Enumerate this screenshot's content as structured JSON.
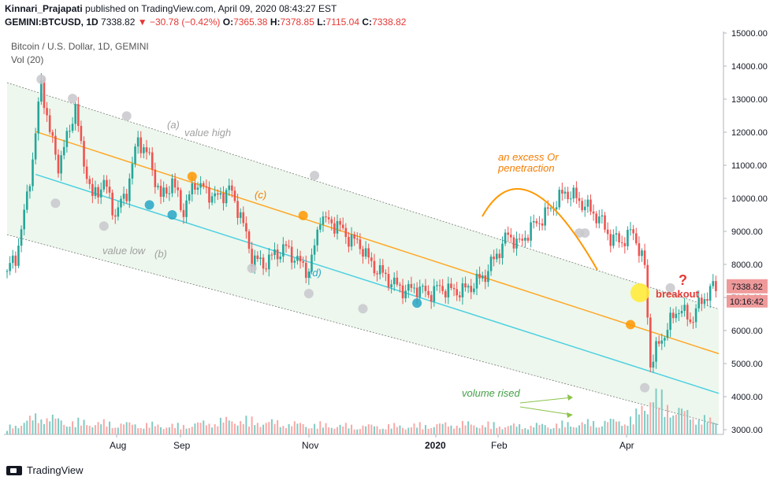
{
  "header": {
    "author": "Kinnari_Prajapati",
    "published": "published on TradingView.com, April 09, 2020 08:43:27 EST",
    "symbol": "GEMINI:BTCUSD, 1D",
    "last": "7338.82",
    "change_arrow": "▼",
    "change": "−30.78 (−0.42%)",
    "o_label": "O:",
    "o": "7365.38",
    "h_label": "H:",
    "h": "7378.85",
    "l_label": "L:",
    "l": "7115.04",
    "c_label": "C:",
    "c": "7338.82"
  },
  "legend": {
    "title": "Bitcoin / U.S. Dollar, 1D, GEMINI",
    "vol": "Vol (20)"
  },
  "footer": {
    "brand": "TradingView"
  },
  "colors": {
    "up": "#26a69a",
    "down": "#ef5350",
    "channel_fill": "#e8f5e9",
    "mid_line": "#ffa726",
    "lower_line": "#4dd0e1",
    "annotation_green": "#43a047"
  },
  "chart_data": {
    "type": "candlestick",
    "y_axis": {
      "min": 3000,
      "max": 15000,
      "ticks": [
        "15000.00",
        "14000.00",
        "13000.00",
        "12000.00",
        "11000.00",
        "10000.00",
        "9000.00",
        "8000.00",
        "7000.00",
        "6000.00",
        "5000.00",
        "4000.00",
        "3000.00"
      ]
    },
    "x_axis": {
      "ticks": [
        "Aug",
        "Sep",
        "Nov",
        "2020",
        "Feb",
        "Apr"
      ],
      "bold_ticks": [
        "2020"
      ]
    },
    "price_label": "7338.82",
    "countdown_label": "10:16:42",
    "price_path": [
      [
        0,
        7800
      ],
      [
        3,
        8200
      ],
      [
        6,
        9500
      ],
      [
        9,
        11200
      ],
      [
        12,
        13500
      ],
      [
        15,
        12000
      ],
      [
        18,
        11000
      ],
      [
        21,
        11800
      ],
      [
        24,
        12800
      ],
      [
        26,
        11500
      ],
      [
        30,
        10000
      ],
      [
        34,
        10500
      ],
      [
        38,
        9500
      ],
      [
        42,
        10200
      ],
      [
        46,
        11800
      ],
      [
        50,
        11200
      ],
      [
        54,
        10000
      ],
      [
        58,
        10500
      ],
      [
        62,
        9600
      ],
      [
        66,
        10500
      ],
      [
        70,
        10200
      ],
      [
        74,
        10000
      ],
      [
        78,
        10300
      ],
      [
        82,
        9500
      ],
      [
        86,
        8200
      ],
      [
        90,
        8000
      ],
      [
        94,
        8300
      ],
      [
        98,
        8500
      ],
      [
        102,
        8100
      ],
      [
        106,
        7800
      ],
      [
        108,
        8500
      ],
      [
        110,
        9500
      ],
      [
        112,
        9300
      ],
      [
        116,
        9200
      ],
      [
        120,
        8800
      ],
      [
        124,
        8600
      ],
      [
        128,
        8000
      ],
      [
        132,
        7700
      ],
      [
        136,
        7400
      ],
      [
        140,
        7200
      ],
      [
        144,
        7300
      ],
      [
        148,
        7100
      ],
      [
        152,
        7300
      ],
      [
        156,
        7200
      ],
      [
        160,
        7200
      ],
      [
        164,
        7400
      ],
      [
        168,
        7700
      ],
      [
        172,
        8300
      ],
      [
        176,
        8900
      ],
      [
        180,
        8600
      ],
      [
        184,
        9100
      ],
      [
        188,
        9400
      ],
      [
        192,
        9800
      ],
      [
        196,
        10200
      ],
      [
        200,
        10000
      ],
      [
        204,
        9700
      ],
      [
        208,
        9400
      ],
      [
        212,
        8800
      ],
      [
        216,
        8700
      ],
      [
        220,
        9000
      ],
      [
        224,
        7900
      ],
      [
        226,
        5000
      ],
      [
        228,
        5400
      ],
      [
        232,
        6100
      ],
      [
        236,
        6700
      ],
      [
        240,
        6300
      ],
      [
        244,
        6900
      ],
      [
        248,
        7300
      ]
    ],
    "volume_path": [
      [
        0,
        0.15
      ],
      [
        12,
        0.45
      ],
      [
        20,
        0.3
      ],
      [
        40,
        0.25
      ],
      [
        60,
        0.2
      ],
      [
        80,
        0.35
      ],
      [
        100,
        0.25
      ],
      [
        120,
        0.2
      ],
      [
        140,
        0.2
      ],
      [
        160,
        0.25
      ],
      [
        180,
        0.2
      ],
      [
        200,
        0.25
      ],
      [
        220,
        0.35
      ],
      [
        226,
        0.95
      ],
      [
        232,
        0.7
      ],
      [
        240,
        0.45
      ],
      [
        248,
        0.3
      ]
    ],
    "channel": {
      "top_start": 13500,
      "top_end": 6650,
      "bottom_start": 8900,
      "bottom_end": 3150
    },
    "lines": {
      "mid_start": 12300,
      "mid_end": 5300,
      "lower_start": 11000,
      "lower_end": 4100
    }
  },
  "annotations": {
    "a": "(a)",
    "value_high": "value high",
    "b": "(b)",
    "value_low": "value low",
    "c": "(c)",
    "d": "(d)",
    "excess1": "an excess Or",
    "excess2": "penetraction",
    "volume_rised": "volume rised",
    "question": "?",
    "breakout": "breakout"
  }
}
